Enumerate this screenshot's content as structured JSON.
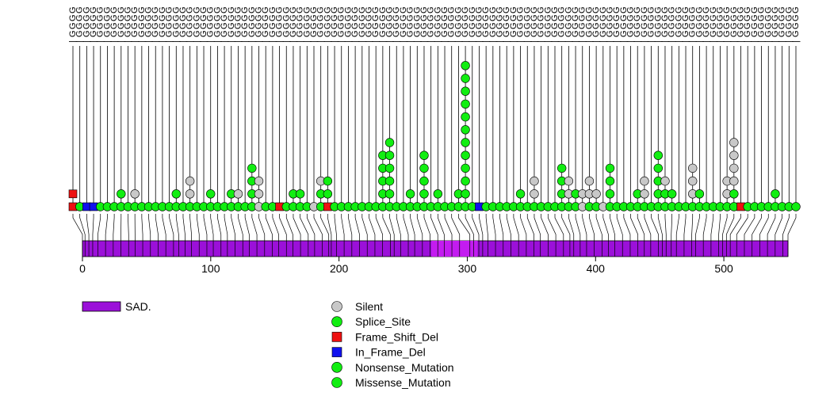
{
  "chart_data": {
    "type": "lollipop",
    "title": "",
    "xlabel": "",
    "ylabel": "",
    "xlim": [
      0,
      550
    ],
    "x_ticks": [
      0,
      100,
      200,
      300,
      400,
      500
    ],
    "domain_track": {
      "protein_length": 550,
      "domains": [
        {
          "name": "SAD.",
          "start": 0,
          "end": 550,
          "color": "#9b10d9"
        },
        {
          "name": "",
          "start": 272,
          "end": 308,
          "color": "#c31cf0"
        }
      ]
    },
    "mutation_types": [
      {
        "name": "Silent",
        "shape": "circle",
        "color": "#c8c8c8"
      },
      {
        "name": "Splice_Site",
        "shape": "circle",
        "color": "#11ee11"
      },
      {
        "name": "Frame_Shift_Del",
        "shape": "square",
        "color": "#ee1111"
      },
      {
        "name": "In_Frame_Del",
        "shape": "square",
        "color": "#1111ee"
      },
      {
        "name": "Nonsense_Mutation",
        "shape": "circle",
        "color": "#11ee11"
      },
      {
        "name": "Missense_Mutation",
        "shape": "circle",
        "color": "#11ee11"
      }
    ],
    "legend": {
      "domains": [
        "SAD."
      ],
      "mutations": [
        "Silent",
        "Splice_Site",
        "Frame_Shift_Del",
        "In_Frame_Del",
        "Nonsense_Mutation",
        "Missense_Mutation"
      ]
    },
    "stacks": [
      {
        "pos": 0,
        "items": [
          "Frame_Shift_Del",
          "Frame_Shift_Del"
        ]
      },
      {
        "pos": 2,
        "items": [
          "Missense_Mutation"
        ]
      },
      {
        "pos": 5,
        "items": [
          "In_Frame_Del"
        ]
      },
      {
        "pos": 8,
        "items": [
          "In_Frame_Del"
        ]
      },
      {
        "pos": 12,
        "items": [
          "Missense_Mutation"
        ]
      },
      {
        "pos": 18,
        "items": [
          "Missense_Mutation"
        ]
      },
      {
        "pos": 24,
        "items": [
          "Missense_Mutation"
        ]
      },
      {
        "pos": 30,
        "items": [
          "Missense_Mutation",
          "Missense_Mutation"
        ]
      },
      {
        "pos": 36,
        "items": [
          "Missense_Mutation"
        ]
      },
      {
        "pos": 41,
        "items": [
          "Missense_Mutation",
          "Silent"
        ]
      },
      {
        "pos": 47,
        "items": [
          "Missense_Mutation"
        ]
      },
      {
        "pos": 53,
        "items": [
          "Missense_Mutation"
        ]
      },
      {
        "pos": 59,
        "items": [
          "Missense_Mutation"
        ]
      },
      {
        "pos": 65,
        "items": [
          "Missense_Mutation"
        ]
      },
      {
        "pos": 71,
        "items": [
          "Missense_Mutation"
        ]
      },
      {
        "pos": 75,
        "items": [
          "Missense_Mutation",
          "Missense_Mutation"
        ]
      },
      {
        "pos": 80,
        "items": [
          "Missense_Mutation"
        ]
      },
      {
        "pos": 85,
        "items": [
          "Missense_Mutation",
          "Silent",
          "Silent"
        ]
      },
      {
        "pos": 91,
        "items": [
          "Missense_Mutation"
        ]
      },
      {
        "pos": 97,
        "items": [
          "Missense_Mutation"
        ]
      },
      {
        "pos": 102,
        "items": [
          "Missense_Mutation",
          "Missense_Mutation"
        ]
      },
      {
        "pos": 108,
        "items": [
          "Missense_Mutation"
        ]
      },
      {
        "pos": 113,
        "items": [
          "Missense_Mutation"
        ]
      },
      {
        "pos": 119,
        "items": [
          "Missense_Mutation",
          "Missense_Mutation"
        ]
      },
      {
        "pos": 125,
        "items": [
          "Missense_Mutation",
          "Silent"
        ]
      },
      {
        "pos": 130,
        "items": [
          "Missense_Mutation"
        ]
      },
      {
        "pos": 136,
        "items": [
          "Missense_Mutation",
          "Missense_Mutation",
          "Missense_Mutation",
          "Missense_Mutation"
        ]
      },
      {
        "pos": 142,
        "items": [
          "Silent",
          "Silent",
          "Silent"
        ]
      },
      {
        "pos": 148,
        "items": [
          "Missense_Mutation"
        ]
      },
      {
        "pos": 153,
        "items": [
          "Missense_Mutation"
        ]
      },
      {
        "pos": 159,
        "items": [
          "Frame_Shift_Del"
        ]
      },
      {
        "pos": 164,
        "items": [
          "Missense_Mutation"
        ]
      },
      {
        "pos": 170,
        "items": [
          "Missense_Mutation",
          "Missense_Mutation"
        ]
      },
      {
        "pos": 176,
        "items": [
          "Missense_Mutation",
          "Missense_Mutation"
        ]
      },
      {
        "pos": 181,
        "items": [
          "Missense_Mutation"
        ]
      },
      {
        "pos": 187,
        "items": [
          "Silent"
        ]
      },
      {
        "pos": 192,
        "items": [
          "Missense_Mutation",
          "Missense_Mutation",
          "Silent"
        ]
      },
      {
        "pos": 194,
        "items": [
          "Frame_Shift_Del",
          "Missense_Mutation",
          "Missense_Mutation"
        ]
      },
      {
        "pos": 198,
        "items": [
          "Missense_Mutation"
        ]
      },
      {
        "pos": 204,
        "items": [
          "Missense_Mutation"
        ]
      },
      {
        "pos": 210,
        "items": [
          "Missense_Mutation"
        ]
      },
      {
        "pos": 216,
        "items": [
          "Missense_Mutation"
        ]
      },
      {
        "pos": 222,
        "items": [
          "Missense_Mutation"
        ]
      },
      {
        "pos": 228,
        "items": [
          "Missense_Mutation"
        ]
      },
      {
        "pos": 234,
        "items": [
          "Missense_Mutation"
        ]
      },
      {
        "pos": 240,
        "items": [
          "Missense_Mutation",
          "Missense_Mutation",
          "Missense_Mutation",
          "Missense_Mutation",
          "Missense_Mutation"
        ]
      },
      {
        "pos": 243,
        "items": [
          "Missense_Mutation",
          "Missense_Mutation",
          "Missense_Mutation",
          "Missense_Mutation",
          "Missense_Mutation",
          "Missense_Mutation"
        ]
      },
      {
        "pos": 248,
        "items": [
          "Missense_Mutation"
        ]
      },
      {
        "pos": 254,
        "items": [
          "Missense_Mutation"
        ]
      },
      {
        "pos": 259,
        "items": [
          "Missense_Mutation",
          "Missense_Mutation"
        ]
      },
      {
        "pos": 265,
        "items": [
          "Missense_Mutation"
        ]
      },
      {
        "pos": 271,
        "items": [
          "Missense_Mutation",
          "Missense_Mutation",
          "Missense_Mutation",
          "Missense_Mutation",
          "Missense_Mutation"
        ]
      },
      {
        "pos": 277,
        "items": [
          "Missense_Mutation"
        ]
      },
      {
        "pos": 282,
        "items": [
          "Missense_Mutation",
          "Missense_Mutation"
        ]
      },
      {
        "pos": 288,
        "items": [
          "Missense_Mutation"
        ]
      },
      {
        "pos": 294,
        "items": [
          "Missense_Mutation"
        ]
      },
      {
        "pos": 302,
        "items": [
          "Missense_Mutation",
          "Missense_Mutation"
        ]
      },
      {
        "pos": 305,
        "items": [
          "Missense_Mutation",
          "Missense_Mutation",
          "Missense_Mutation",
          "Missense_Mutation",
          "Missense_Mutation",
          "Missense_Mutation",
          "Missense_Mutation",
          "Missense_Mutation",
          "Missense_Mutation",
          "Missense_Mutation",
          "Missense_Mutation",
          "Missense_Mutation"
        ]
      },
      {
        "pos": 309,
        "items": [
          "Missense_Mutation"
        ]
      },
      {
        "pos": 312,
        "items": [
          "In_Frame_Del"
        ]
      },
      {
        "pos": 316,
        "items": [
          "Missense_Mutation"
        ]
      },
      {
        "pos": 322,
        "items": [
          "Missense_Mutation"
        ]
      },
      {
        "pos": 328,
        "items": [
          "Missense_Mutation"
        ]
      },
      {
        "pos": 334,
        "items": [
          "Missense_Mutation"
        ]
      },
      {
        "pos": 340,
        "items": [
          "Missense_Mutation"
        ]
      },
      {
        "pos": 346,
        "items": [
          "Missense_Mutation",
          "Missense_Mutation"
        ]
      },
      {
        "pos": 352,
        "items": [
          "Missense_Mutation"
        ]
      },
      {
        "pos": 357,
        "items": [
          "Missense_Mutation",
          "Silent",
          "Silent"
        ]
      },
      {
        "pos": 363,
        "items": [
          "Missense_Mutation"
        ]
      },
      {
        "pos": 369,
        "items": [
          "Missense_Mutation"
        ]
      },
      {
        "pos": 375,
        "items": [
          "Missense_Mutation"
        ]
      },
      {
        "pos": 380,
        "items": [
          "Missense_Mutation",
          "Missense_Mutation",
          "Missense_Mutation",
          "Missense_Mutation"
        ]
      },
      {
        "pos": 383,
        "items": [
          "Missense_Mutation",
          "Silent",
          "Silent"
        ]
      },
      {
        "pos": 388,
        "items": [
          "Missense_Mutation",
          "Missense_Mutation"
        ]
      },
      {
        "pos": 393,
        "items": [
          "Silent",
          "Silent"
        ]
      },
      {
        "pos": 399,
        "items": [
          "Missense_Mutation",
          "Silent",
          "Silent"
        ]
      },
      {
        "pos": 405,
        "items": [
          "Missense_Mutation",
          "Silent"
        ]
      },
      {
        "pos": 410,
        "items": [
          "Silent"
        ]
      },
      {
        "pos": 415,
        "items": [
          "Missense_Mutation",
          "Missense_Mutation",
          "Missense_Mutation",
          "Missense_Mutation"
        ]
      },
      {
        "pos": 421,
        "items": [
          "Missense_Mutation"
        ]
      },
      {
        "pos": 427,
        "items": [
          "Missense_Mutation"
        ]
      },
      {
        "pos": 433,
        "items": [
          "Missense_Mutation"
        ]
      },
      {
        "pos": 438,
        "items": [
          "Missense_Mutation",
          "Missense_Mutation"
        ]
      },
      {
        "pos": 443,
        "items": [
          "Missense_Mutation",
          "Silent",
          "Silent"
        ]
      },
      {
        "pos": 449,
        "items": [
          "Missense_Mutation"
        ]
      },
      {
        "pos": 452,
        "items": [
          "Missense_Mutation",
          "Missense_Mutation",
          "Missense_Mutation",
          "Missense_Mutation",
          "Missense_Mutation"
        ]
      },
      {
        "pos": 455,
        "items": [
          "Missense_Mutation",
          "Missense_Mutation",
          "Silent"
        ]
      },
      {
        "pos": 459,
        "items": [
          "Missense_Mutation",
          "Missense_Mutation"
        ]
      },
      {
        "pos": 463,
        "items": [
          "Missense_Mutation"
        ]
      },
      {
        "pos": 469,
        "items": [
          "Missense_Mutation"
        ]
      },
      {
        "pos": 475,
        "items": [
          "Missense_Mutation",
          "Silent",
          "Silent",
          "Silent"
        ]
      },
      {
        "pos": 478,
        "items": [
          "Missense_Mutation",
          "Missense_Mutation"
        ]
      },
      {
        "pos": 484,
        "items": [
          "Missense_Mutation"
        ]
      },
      {
        "pos": 490,
        "items": [
          "Missense_Mutation"
        ]
      },
      {
        "pos": 496,
        "items": [
          "Missense_Mutation"
        ]
      },
      {
        "pos": 499,
        "items": [
          "Missense_Mutation",
          "Silent",
          "Silent"
        ]
      },
      {
        "pos": 502,
        "items": [
          "Missense_Mutation",
          "Missense_Mutation",
          "Silent",
          "Silent",
          "Silent",
          "Silent"
        ]
      },
      {
        "pos": 505,
        "items": [
          "Frame_Shift_Del"
        ]
      },
      {
        "pos": 510,
        "items": [
          "Missense_Mutation"
        ]
      },
      {
        "pos": 516,
        "items": [
          "Missense_Mutation"
        ]
      },
      {
        "pos": 522,
        "items": [
          "Missense_Mutation"
        ]
      },
      {
        "pos": 528,
        "items": [
          "Missense_Mutation"
        ]
      },
      {
        "pos": 534,
        "items": [
          "Missense_Mutation",
          "Missense_Mutation"
        ]
      },
      {
        "pos": 540,
        "items": [
          "Missense_Mutation"
        ]
      },
      {
        "pos": 546,
        "items": [
          "Missense_Mutation"
        ]
      },
      {
        "pos": 550,
        "items": [
          "Missense_Mutation"
        ]
      }
    ]
  }
}
